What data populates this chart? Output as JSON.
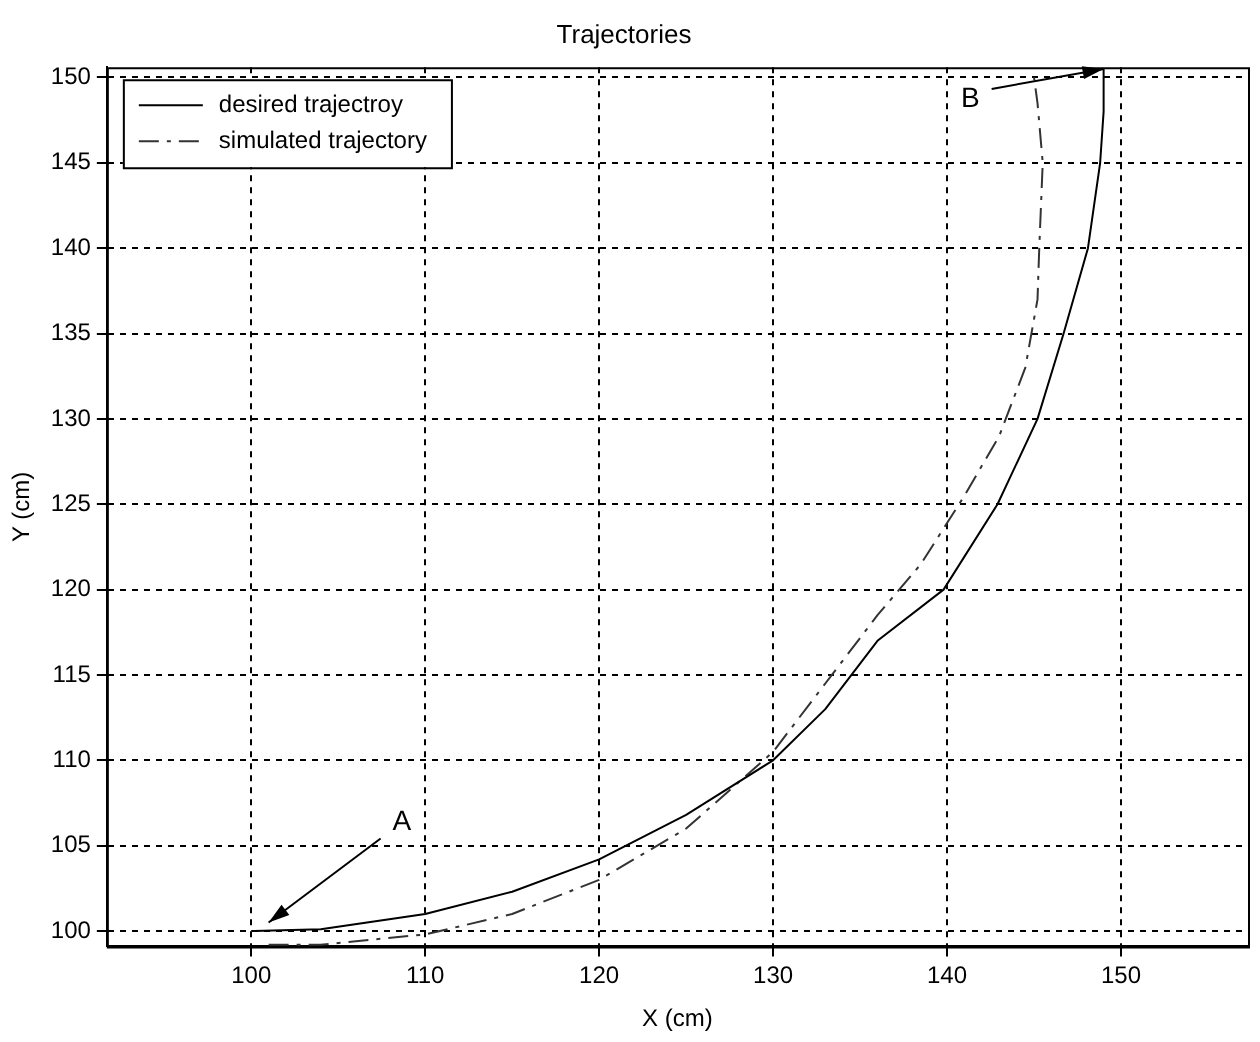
{
  "chart_data": {
    "type": "line",
    "title": "Trajectories",
    "xlabel": "X (cm)",
    "ylabel": "Y (cm)",
    "xlim": [
      91.7,
      157.3
    ],
    "ylim": [
      99.1,
      150.6
    ],
    "xticks": [
      100,
      110,
      120,
      130,
      140,
      150
    ],
    "yticks": [
      100,
      105,
      110,
      115,
      120,
      125,
      130,
      135,
      140,
      145,
      150
    ],
    "grid": true,
    "legend": "top left",
    "marker": "none",
    "series": [
      {
        "name": "desired trajectroy",
        "color": "#000000",
        "line_style": "solid",
        "x": [
          100,
          104,
          110,
          115,
          120,
          125,
          130,
          133,
          136,
          139.8,
          142.9,
          145.2,
          146.7,
          148.1,
          148.8,
          149,
          149
        ],
        "values": [
          100,
          100.1,
          101,
          102.3,
          104.2,
          106.8,
          110,
          113,
          117,
          120,
          125,
          130,
          135,
          140,
          145,
          148,
          150.5
        ]
      },
      {
        "name": "simulated trajectory",
        "color": "#333333",
        "line_style": "dashed",
        "x": [
          101,
          104,
          110,
          115,
          120,
          125,
          130,
          133,
          136,
          138.5,
          141,
          143,
          144.5,
          145.2,
          145.3,
          145.5,
          145.2,
          145
        ],
        "values": [
          99.2,
          99.2,
          99.8,
          101,
          103,
          106,
          110.5,
          114.5,
          118.5,
          121.5,
          125.5,
          129,
          133,
          137,
          140,
          145,
          148.5,
          150
        ]
      }
    ],
    "annotations": [
      {
        "text": "A",
        "x": 101,
        "y": 100.5
      },
      {
        "text": "B",
        "x": 149,
        "y": 150.5
      }
    ]
  }
}
